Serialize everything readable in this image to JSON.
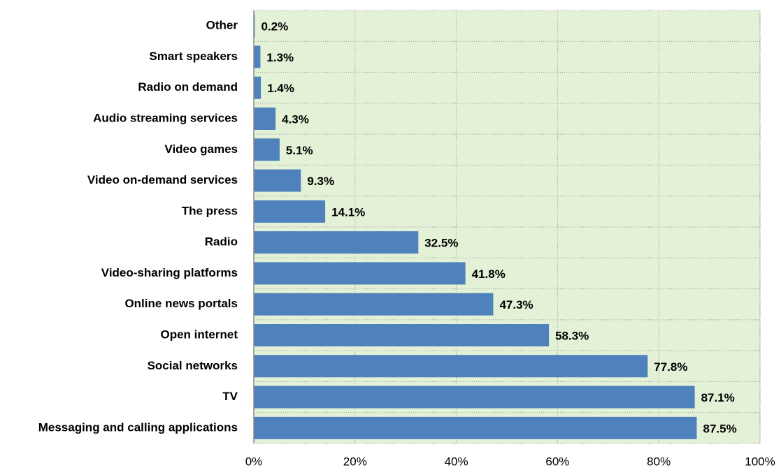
{
  "chart_data": {
    "type": "bar",
    "orientation": "horizontal",
    "categories": [
      "Other",
      "Smart speakers",
      "Radio on demand",
      "Audio streaming services",
      "Video games",
      "Video on-demand services",
      "The press",
      "Radio",
      "Video-sharing platforms",
      "Online news portals",
      "Open internet",
      "Social networks",
      "TV",
      "Messaging and calling applications"
    ],
    "values": [
      0.2,
      1.3,
      1.4,
      4.3,
      5.1,
      9.3,
      14.1,
      32.5,
      41.8,
      47.3,
      58.3,
      77.8,
      87.1,
      87.5
    ],
    "value_labels": [
      "0.2%",
      "1.3%",
      "1.4%",
      "4.3%",
      "5.1%",
      "9.3%",
      "14.1%",
      "32.5%",
      "41.8%",
      "47.3%",
      "58.3%",
      "77.8%",
      "87.1%",
      "87.5%"
    ],
    "color": "#4f81bd",
    "xlim": [
      0,
      100
    ],
    "xticks": [
      {
        "value": 0,
        "label": "0%"
      },
      {
        "value": 20,
        "label": "20%"
      },
      {
        "value": 40,
        "label": "40%"
      },
      {
        "value": 60,
        "label": "60%"
      },
      {
        "value": 80,
        "label": "80%"
      },
      {
        "value": 100,
        "label": "100%"
      }
    ],
    "grid": true
  }
}
